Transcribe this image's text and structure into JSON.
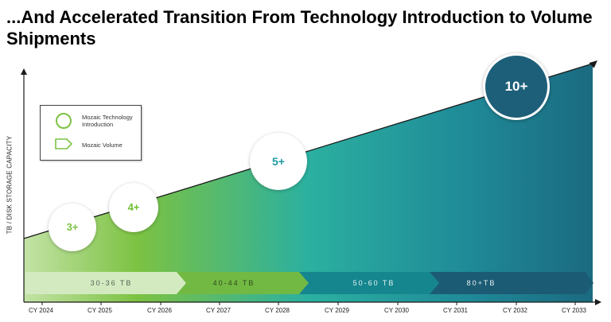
{
  "title": "...And Accelerated Transition From Technology Introduction to Volume Shipments",
  "y_axis_label": "TB / DISK STORAGE CAPACITY",
  "legend": {
    "introduction_label": "Mozaic Technology Introduction",
    "volume_label": "Mozaic Volume"
  },
  "colors": {
    "green_light": "#cfe8bd",
    "green": "#7cc242",
    "teal": "#1f9aa0",
    "navy": "#1b5d78"
  },
  "bubbles": [
    {
      "label": "3+",
      "year": "CY 2024"
    },
    {
      "label": "4+",
      "year": "CY 2025"
    },
    {
      "label": "5+",
      "year": "CY 2028"
    },
    {
      "label": "10+",
      "year": "CY 2032"
    }
  ],
  "volume_bands": [
    {
      "label": "30-36 TB"
    },
    {
      "label": "40-44 TB"
    },
    {
      "label": "50-60 TB"
    },
    {
      "label": "80+TB"
    }
  ],
  "x_ticks": [
    "CY 2024",
    "CY 2025",
    "CY 2026",
    "CY 2027",
    "CY 2028",
    "CY 2029",
    "CY 2030",
    "CY 2031",
    "CY 2032",
    "CY 2033"
  ]
}
